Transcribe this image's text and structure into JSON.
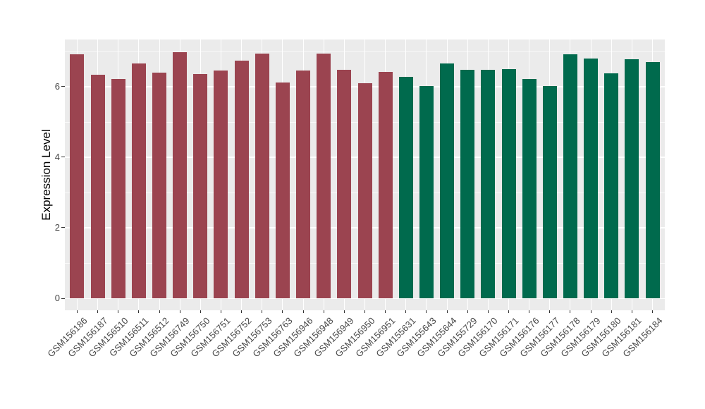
{
  "chart_data": {
    "type": "bar",
    "title": "",
    "xlabel": "",
    "ylabel": "Expression Level",
    "categories": [
      "GSM156186",
      "GSM156187",
      "GSM156510",
      "GSM156511",
      "GSM156512",
      "GSM156749",
      "GSM156750",
      "GSM156751",
      "GSM156752",
      "GSM156753",
      "GSM156763",
      "GSM156946",
      "GSM156948",
      "GSM156949",
      "GSM156950",
      "GSM156951",
      "GSM155631",
      "GSM155643",
      "GSM155644",
      "GSM155729",
      "GSM156170",
      "GSM156171",
      "GSM156176",
      "GSM156177",
      "GSM156178",
      "GSM156179",
      "GSM156180",
      "GSM156181",
      "GSM156184"
    ],
    "values": [
      6.92,
      6.34,
      6.21,
      6.65,
      6.4,
      6.97,
      6.36,
      6.45,
      6.74,
      6.94,
      6.12,
      6.46,
      6.93,
      6.48,
      6.1,
      6.42,
      6.28,
      6.02,
      6.65,
      6.47,
      6.47,
      6.5,
      6.21,
      6.02,
      6.91,
      6.8,
      6.38,
      6.77,
      6.7
    ],
    "bar_groups": [
      "maroon",
      "maroon",
      "maroon",
      "maroon",
      "maroon",
      "maroon",
      "maroon",
      "maroon",
      "maroon",
      "maroon",
      "maroon",
      "maroon",
      "maroon",
      "maroon",
      "maroon",
      "maroon",
      "green",
      "green",
      "green",
      "green",
      "green",
      "green",
      "green",
      "green",
      "green",
      "green",
      "green",
      "green",
      "green"
    ],
    "group_colors": {
      "maroon": "#9B4450",
      "green": "#006A4D"
    },
    "yticks": [
      0,
      2,
      4,
      6
    ],
    "ylim": [
      -0.35,
      7.33
    ],
    "grid": {
      "major_y": [
        0,
        2,
        4,
        6
      ],
      "minor_y": [
        1,
        3,
        5,
        7
      ],
      "vertical": "per-category"
    },
    "legend_position": "none",
    "panel_bg": "#EBEBEB",
    "grid_color": "#FFFFFF",
    "axis_text_color": "#474747",
    "axis_title_color": "#000000",
    "tick_mark_color": "#333333"
  }
}
